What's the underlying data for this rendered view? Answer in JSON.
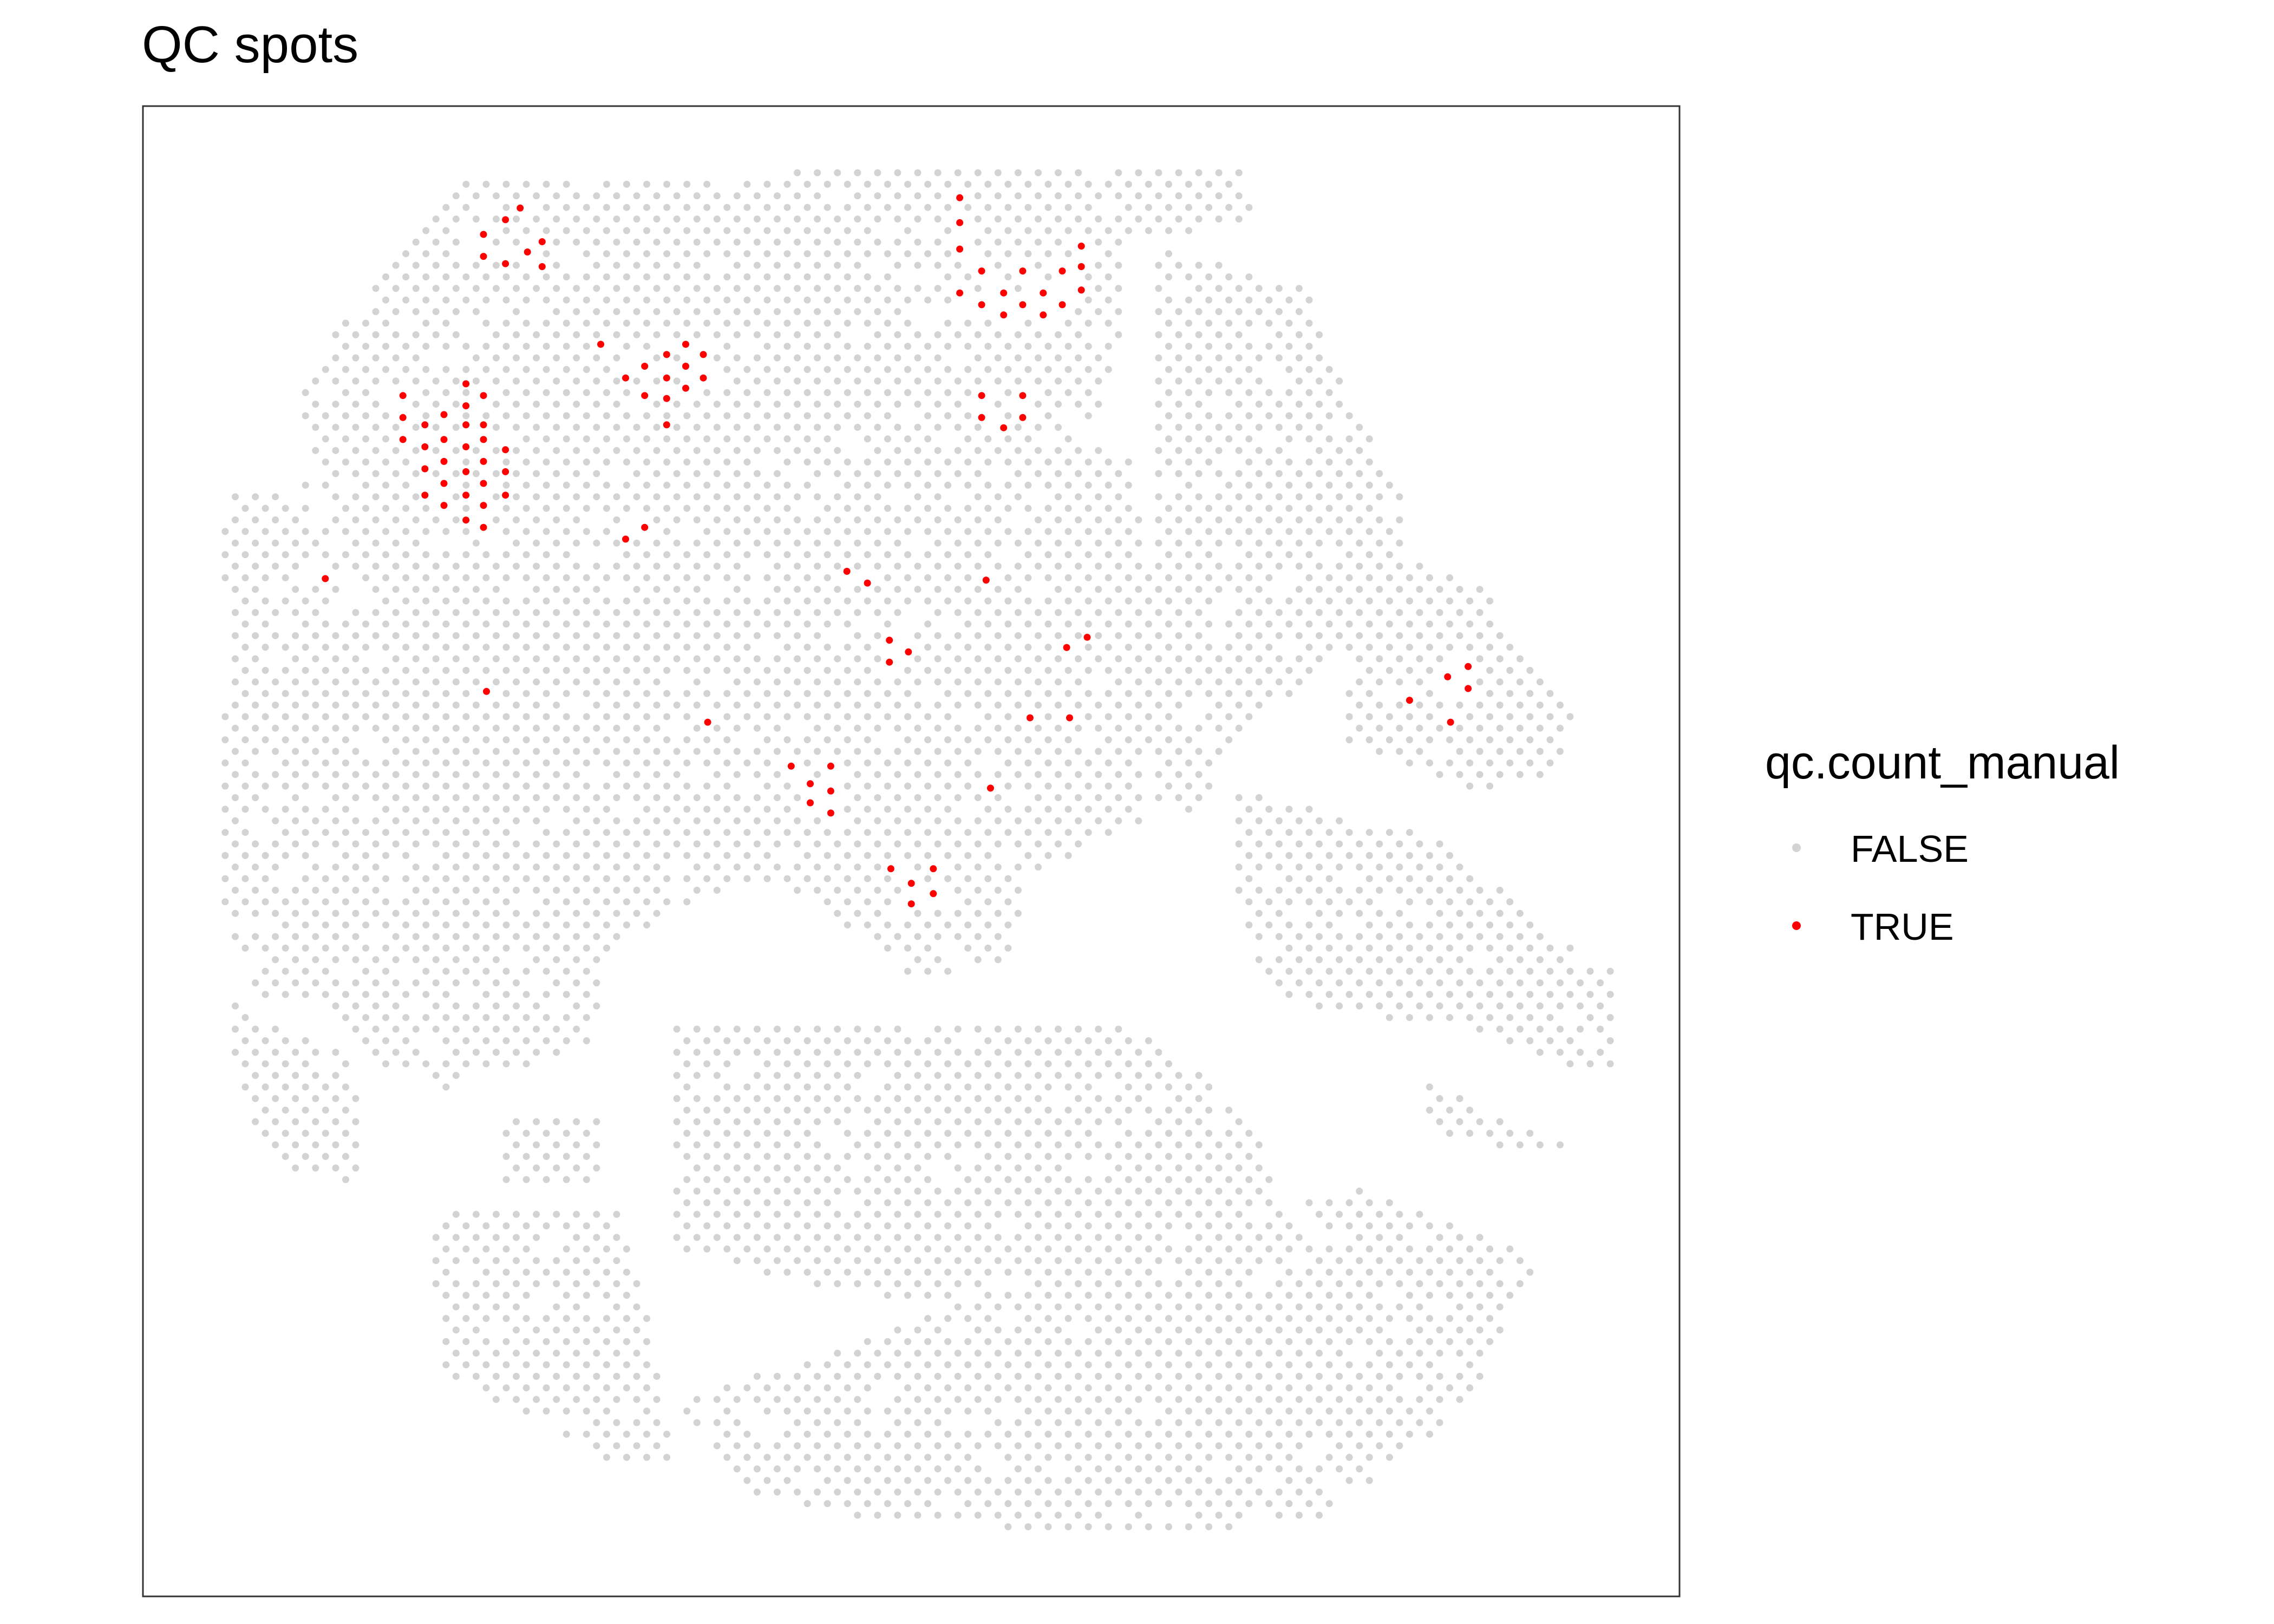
{
  "chart_data": {
    "type": "scatter",
    "title": "QC spots",
    "xlabel": "",
    "ylabel": "",
    "grid": false,
    "axes_visible": false,
    "legend_position": "right",
    "legend_title": "qc.count_manual",
    "series": [
      {
        "name": "FALSE",
        "color": "#d3d3d3",
        "layout": "hexagonal spot grid covering irregular tissue regions (same coordinate space as TRUE points)"
      },
      {
        "name": "TRUE",
        "color": "#ff0000",
        "points": [
          [
            330,
            160
          ],
          [
            355,
            142
          ],
          [
            370,
            165
          ],
          [
            345,
            150
          ],
          [
            330,
            175
          ],
          [
            345,
            180
          ],
          [
            360,
            172
          ],
          [
            370,
            182
          ],
          [
            275,
            270
          ],
          [
            275,
            285
          ],
          [
            275,
            300
          ],
          [
            290,
            290
          ],
          [
            290,
            305
          ],
          [
            290,
            320
          ],
          [
            290,
            338
          ],
          [
            303,
            283
          ],
          [
            303,
            300
          ],
          [
            303,
            315
          ],
          [
            303,
            330
          ],
          [
            303,
            345
          ],
          [
            318,
            262
          ],
          [
            318,
            277
          ],
          [
            318,
            290
          ],
          [
            318,
            305
          ],
          [
            318,
            322
          ],
          [
            318,
            338
          ],
          [
            318,
            355
          ],
          [
            330,
            270
          ],
          [
            330,
            290
          ],
          [
            330,
            300
          ],
          [
            330,
            315
          ],
          [
            330,
            330
          ],
          [
            330,
            345
          ],
          [
            330,
            360
          ],
          [
            345,
            307
          ],
          [
            345,
            322
          ],
          [
            345,
            338
          ],
          [
            410,
            235
          ],
          [
            427,
            258
          ],
          [
            440,
            250
          ],
          [
            440,
            270
          ],
          [
            455,
            242
          ],
          [
            455,
            258
          ],
          [
            455,
            272
          ],
          [
            455,
            290
          ],
          [
            468,
            235
          ],
          [
            468,
            250
          ],
          [
            468,
            265
          ],
          [
            480,
            242
          ],
          [
            480,
            258
          ],
          [
            655,
            135
          ],
          [
            655,
            152
          ],
          [
            655,
            170
          ],
          [
            655,
            200
          ],
          [
            670,
            185
          ],
          [
            670,
            208
          ],
          [
            685,
            200
          ],
          [
            685,
            215
          ],
          [
            698,
            185
          ],
          [
            698,
            208
          ],
          [
            712,
            200
          ],
          [
            712,
            215
          ],
          [
            725,
            185
          ],
          [
            725,
            208
          ],
          [
            738,
            168
          ],
          [
            738,
            182
          ],
          [
            738,
            198
          ],
          [
            670,
            270
          ],
          [
            670,
            285
          ],
          [
            685,
            292
          ],
          [
            698,
            270
          ],
          [
            698,
            285
          ],
          [
            222,
            395
          ],
          [
            427,
            368
          ],
          [
            440,
            360
          ],
          [
            332,
            472
          ],
          [
            483,
            493
          ],
          [
            578,
            390
          ],
          [
            592,
            398
          ],
          [
            607,
            437
          ],
          [
            607,
            452
          ],
          [
            620,
            445
          ],
          [
            673,
            396
          ],
          [
            540,
            523
          ],
          [
            553,
            535
          ],
          [
            553,
            548
          ],
          [
            567,
            523
          ],
          [
            567,
            540
          ],
          [
            567,
            555
          ],
          [
            728,
            442
          ],
          [
            742,
            435
          ],
          [
            703,
            490
          ],
          [
            730,
            490
          ],
          [
            676,
            538
          ],
          [
            608,
            593
          ],
          [
            622,
            603
          ],
          [
            622,
            617
          ],
          [
            637,
            593
          ],
          [
            637,
            610
          ],
          [
            962,
            478
          ],
          [
            988,
            462
          ],
          [
            1002,
            455
          ],
          [
            1002,
            470
          ],
          [
            990,
            493
          ]
        ]
      }
    ]
  }
}
